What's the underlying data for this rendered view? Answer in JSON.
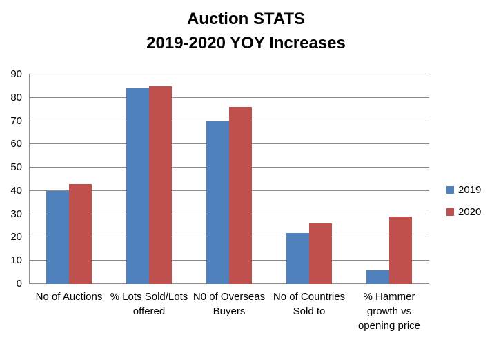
{
  "chart_data": {
    "type": "bar",
    "title": "Auction STATS\n2019-2020 YOY Increases",
    "categories": [
      "No of Auctions",
      "% Lots Sold/Lots\noffered",
      "N0 of Overseas\nBuyers",
      "No of Countries\nSold to",
      "% Hammer\ngrowth vs\nopening price"
    ],
    "series": [
      {
        "name": "2019",
        "color": "#4F81BD",
        "values": [
          40,
          84,
          70,
          22,
          6
        ]
      },
      {
        "name": "2020",
        "color": "#C0504D",
        "values": [
          43,
          85,
          76,
          26,
          29
        ]
      }
    ],
    "ylim": [
      0,
      90
    ],
    "ytick_step": 10,
    "ytick_labels": [
      "0",
      "10",
      "20",
      "30",
      "40",
      "50",
      "60",
      "70",
      "80",
      "90"
    ],
    "grid": true,
    "legend_position": "right",
    "colors": {
      "gridline": "#8C8C8C",
      "axis": "#8C8C8C",
      "text": "#000000",
      "background": "#FFFFFF"
    }
  }
}
